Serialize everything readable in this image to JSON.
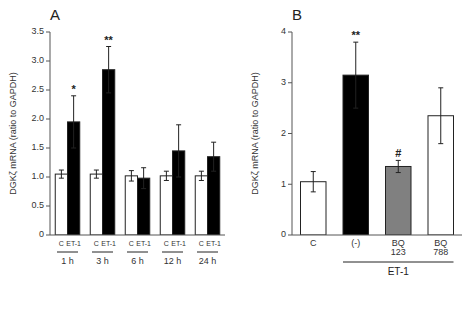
{
  "chart_data": [
    {
      "type": "bar",
      "title": "A",
      "ylabel": "DGKζ mRNA (ratio to GAPDH)",
      "categories": [
        "1 h",
        "3 h",
        "6 h",
        "12 h",
        "24 h"
      ],
      "series": [
        {
          "name": "C",
          "color": "white",
          "values": [
            1.05,
            1.05,
            1.02,
            1.02,
            1.02
          ],
          "errors": [
            0.07,
            0.07,
            0.09,
            0.08,
            0.08
          ]
        },
        {
          "name": "ET-1",
          "color": "black",
          "values": [
            1.95,
            2.85,
            0.98,
            1.45,
            1.35
          ],
          "errors": [
            0.45,
            0.4,
            0.18,
            0.45,
            0.25
          ],
          "significance": [
            "*",
            "**",
            null,
            null,
            null
          ]
        }
      ],
      "ylim": [
        0,
        3.5
      ],
      "yticks": [
        0,
        0.5,
        {
          "value": 1,
          "label": "1.0"
        },
        1.5,
        {
          "value": 2,
          "label": "2.0"
        },
        2.5,
        {
          "value": 3,
          "label": "3.0"
        },
        3.5
      ],
      "grid": false
    },
    {
      "type": "bar",
      "title": "B",
      "ylabel": "DGKζ mRNA (ratio to GAPDH)",
      "xlabel": "ET-1",
      "categories": [
        "C",
        "(-)",
        "BQ\n123",
        "BQ\n788"
      ],
      "values": [
        1.05,
        3.15,
        1.35,
        2.35
      ],
      "errors": [
        0.2,
        0.65,
        0.12,
        0.55
      ],
      "colors": [
        "white",
        "black",
        "gray",
        "white"
      ],
      "significance": [
        null,
        "**",
        "#",
        null
      ],
      "ylim": [
        0,
        4.0
      ],
      "yticks": [
        0,
        1,
        2,
        3,
        4
      ],
      "grid": false
    }
  ]
}
